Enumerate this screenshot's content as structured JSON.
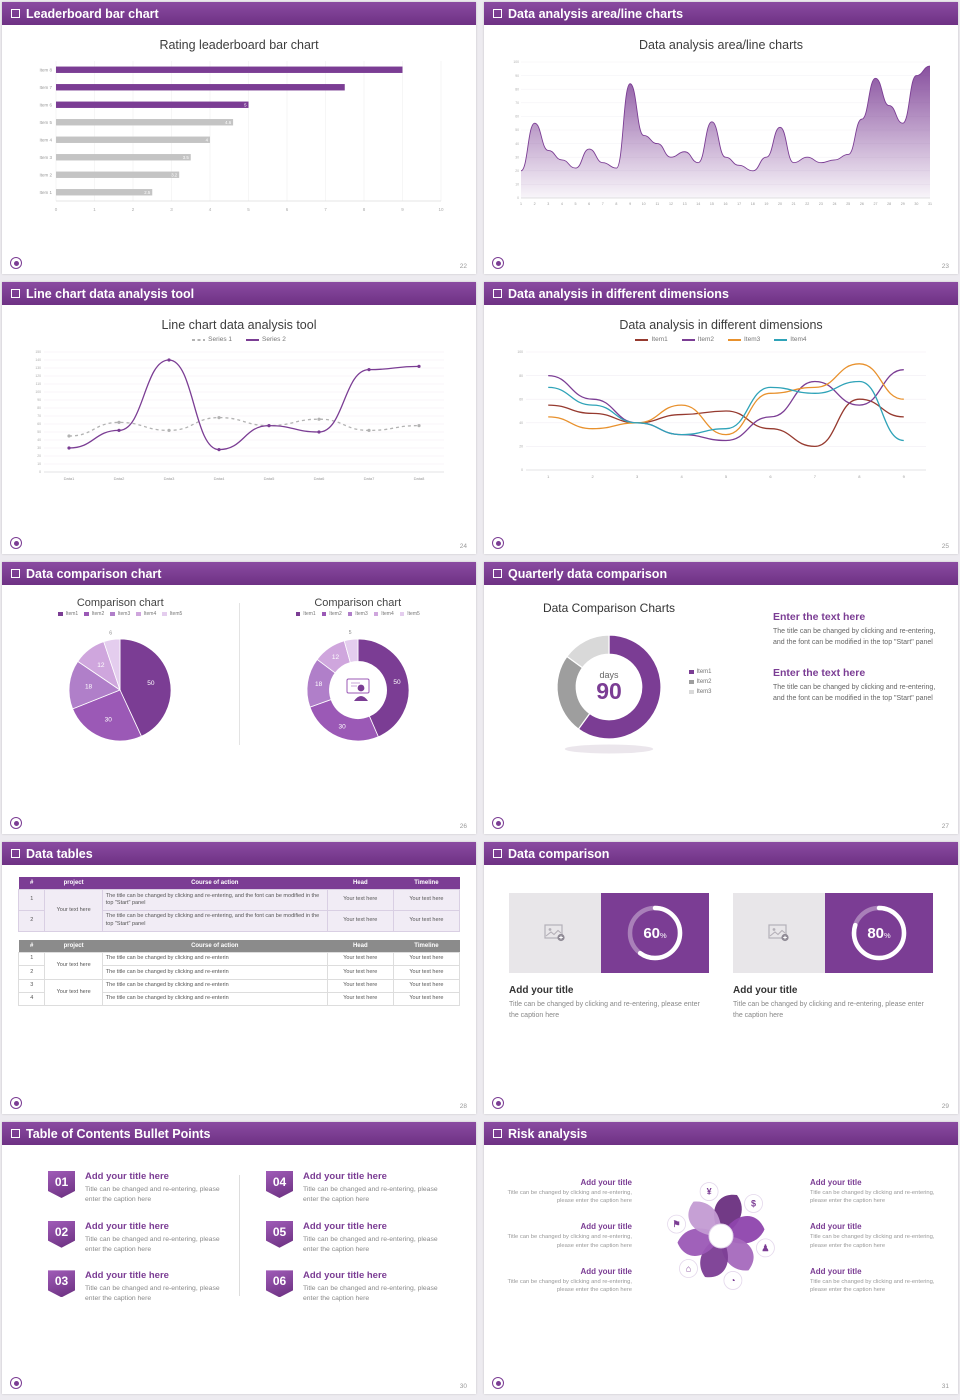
{
  "theme": {
    "purple": "#7b3d94",
    "purple_dark": "#6a2f7f",
    "purple_mid": "#9b59b6",
    "gray_bar": "#c4c4c4"
  },
  "slides": [
    {
      "header": "Leaderboard bar chart",
      "page": "22",
      "title": "Rating leaderboard bar chart",
      "chart_data": {
        "type": "hbar",
        "title": "Rating leaderboard bar chart",
        "categories": [
          "Item 1",
          "Item 2",
          "Item 3",
          "Item 4",
          "Item 5",
          "Item 6",
          "Item 7",
          "Item 8"
        ],
        "values": [
          2.5,
          3.2,
          3.5,
          4,
          4.6,
          5,
          7.5,
          9
        ],
        "value_labels": [
          "2.5",
          "3.2",
          "3.5",
          "4",
          "4.6",
          "5",
          "",
          ""
        ],
        "colors": [
          "#c4c4c4",
          "#c4c4c4",
          "#c4c4c4",
          "#c4c4c4",
          "#c4c4c4",
          "#7b3d94",
          "#7b3d94",
          "#7b3d94"
        ],
        "xlim": [
          0,
          10
        ],
        "xticks": [
          0,
          1,
          2,
          3,
          4,
          5,
          6,
          7,
          8,
          9,
          10
        ]
      }
    },
    {
      "header": "Data analysis area/line charts",
      "page": "23",
      "title": "Data analysis area/line charts",
      "chart_data": {
        "type": "area",
        "title": "Data analysis area/line charts",
        "color": "#7b3d94",
        "x": [
          1,
          2,
          3,
          4,
          5,
          6,
          7,
          8,
          9,
          10,
          11,
          12,
          13,
          14,
          15,
          16,
          17,
          18,
          19,
          20,
          21,
          22,
          23,
          24,
          25,
          26,
          27,
          28,
          29,
          30,
          31
        ],
        "values": [
          20,
          55,
          35,
          28,
          22,
          36,
          26,
          22,
          84,
          46,
          40,
          30,
          34,
          26,
          56,
          30,
          24,
          20,
          30,
          52,
          26,
          30,
          26,
          28,
          32,
          58,
          88,
          68,
          55,
          90,
          97
        ],
        "ylim": [
          0,
          100
        ],
        "ytick_step": 10
      }
    },
    {
      "header": "Line chart data analysis tool",
      "page": "24",
      "title": "Line chart data analysis tool",
      "chart_data": {
        "type": "line",
        "title": "Line chart data analysis tool",
        "markers": true,
        "categories": [
          "Data1",
          "Data2",
          "Data3",
          "Data4",
          "Data5",
          "Data6",
          "Data7",
          "Data8"
        ],
        "series": [
          {
            "name": "Series 1",
            "color": "#b3b3b3",
            "dash": "3 3",
            "values": [
              45,
              62,
              52,
              68,
              58,
              66,
              52,
              58
            ]
          },
          {
            "name": "Series 2",
            "color": "#7b3d94",
            "dash": "",
            "values": [
              30,
              52,
              140,
              28,
              58,
              50,
              128,
              132
            ]
          }
        ],
        "ylim": [
          0,
          150
        ],
        "ytick_step": 10
      }
    },
    {
      "header": "Data analysis in different dimensions",
      "page": "25",
      "title": "Data analysis in different dimensions",
      "chart_data": {
        "type": "line",
        "title": "Data analysis in different dimensions",
        "markers": false,
        "categories": [
          "1",
          "2",
          "3",
          "4",
          "5",
          "6",
          "7",
          "8",
          "9"
        ],
        "series": [
          {
            "name": "Item1",
            "color": "#963a2f",
            "dash": "",
            "values": [
              55,
              48,
              40,
              47,
              50,
              35,
              20,
              60,
              45
            ]
          },
          {
            "name": "Item2",
            "color": "#7b3d94",
            "dash": "",
            "values": [
              80,
              60,
              40,
              30,
              25,
              45,
              75,
              55,
              85
            ]
          },
          {
            "name": "Item3",
            "color": "#e8912d",
            "dash": "",
            "values": [
              45,
              35,
              40,
              55,
              30,
              65,
              70,
              90,
              60
            ]
          },
          {
            "name": "Item4",
            "color": "#2fa3b8",
            "dash": "",
            "values": [
              70,
              55,
              40,
              30,
              35,
              70,
              65,
              75,
              25
            ]
          }
        ],
        "ylim": [
          0,
          100
        ],
        "ytick_step": 20
      }
    },
    {
      "header": "Data comparison chart",
      "page": "26",
      "charts": [
        {
          "title": "Comparison chart",
          "legend": [
            "Item1",
            "Item2",
            "Item3",
            "Item4",
            "Item5"
          ],
          "chart_data": {
            "type": "pie",
            "donut": false,
            "values": [
              50,
              30,
              18,
              12,
              6
            ],
            "labels": [
              "50",
              "30",
              "18",
              "12",
              "6"
            ],
            "colors": [
              "#7b3d94",
              "#9b59b6",
              "#b07fc9",
              "#cfa6dd",
              "#e4cdee"
            ]
          }
        },
        {
          "title": "Comparison chart",
          "legend": [
            "Item1",
            "Item2",
            "Item3",
            "Item4",
            "Item5"
          ],
          "chart_data": {
            "type": "pie",
            "donut": true,
            "center_icon": "person",
            "values": [
              50,
              30,
              18,
              12,
              5
            ],
            "labels": [
              "50",
              "30",
              "18",
              "12",
              "5"
            ],
            "colors": [
              "#7b3d94",
              "#9b59b6",
              "#b07fc9",
              "#cfa6dd",
              "#e4cdee"
            ]
          }
        }
      ]
    },
    {
      "header": "Quarterly data comparison",
      "page": "27",
      "title": "Data Comparison Charts",
      "chart_data": {
        "type": "donut",
        "values": [
          60,
          25,
          15
        ],
        "colors": [
          "#7b3d94",
          "#9e9e9e",
          "#d9d9d9"
        ],
        "center_label": "days",
        "center_value": "90",
        "legend": [
          "Item1",
          "Item2",
          "Item3"
        ]
      },
      "blocks": [
        {
          "title": "Enter the text here",
          "body": "The title can be changed by clicking and re-entering, and the font can be modified in the top \"Start\" panel"
        },
        {
          "title": "Enter the text here",
          "body": "The title can be changed by clicking and re-entering, and the font can be modified in the top \"Start\" panel"
        }
      ]
    },
    {
      "header": "Data tables",
      "page": "28",
      "table1": {
        "headers": [
          "#",
          "project",
          "Course of action",
          "Head",
          "Timeline"
        ],
        "project": "Your text here",
        "rows": [
          {
            "num": "1",
            "action": "The title can be changed by clicking and re-entering, and the font can be modified in the top \"Start\" panel",
            "head": "Your text here",
            "timeline": "Your text here"
          },
          {
            "num": "2",
            "action": "The title can be changed by clicking and re-entering, and the font can be modified in the top \"Start\" panel",
            "head": "Your text here",
            "timeline": "Your text here"
          }
        ]
      },
      "table2": {
        "headers": [
          "#",
          "project",
          "Course of action",
          "Head",
          "Timeline"
        ],
        "project": "Your text here",
        "rows": [
          {
            "num": "1",
            "action": "The title can be changed by clicking and re-enterin",
            "head": "Your text here",
            "timeline": "Your text here"
          },
          {
            "num": "2",
            "action": "The title can be changed by clicking and re-enterin",
            "head": "Your text here",
            "timeline": "Your text here"
          },
          {
            "num": "3",
            "action": "The title can be changed by clicking and re-enterin",
            "head": "Your text here",
            "timeline": "Your text here"
          },
          {
            "num": "4",
            "action": "The title can be changed by clicking and re-enterin",
            "head": "Your text here",
            "timeline": "Your text here"
          }
        ]
      }
    },
    {
      "header": "Data comparison",
      "page": "29",
      "cards": [
        {
          "title": "Add your title",
          "caption": "Title can be changed by clicking and re-entering, please enter the caption here",
          "chart": {
            "type": "progress",
            "percent": 60,
            "unit": "%"
          }
        },
        {
          "title": "Add your title",
          "caption": "Title can be changed by clicking and re-entering, please enter the caption here",
          "chart": {
            "type": "progress",
            "percent": 80,
            "unit": "%"
          }
        }
      ]
    },
    {
      "header": "Table of Contents Bullet Points",
      "page": "30",
      "items": [
        {
          "num": "01",
          "title": "Add your title here",
          "caption": "Title can be changed and re-entering, please enter the caption here"
        },
        {
          "num": "02",
          "title": "Add your title here",
          "caption": "Title can be changed and re-entering, please enter the caption here"
        },
        {
          "num": "03",
          "title": "Add your title here",
          "caption": "Title can be changed and re-entering, please enter the caption here"
        },
        {
          "num": "04",
          "title": "Add your title here",
          "caption": "Title can be changed and re-entering, please enter the caption here"
        },
        {
          "num": "05",
          "title": "Add your title here",
          "caption": "Title can be changed and re-entering, please enter the caption here"
        },
        {
          "num": "06",
          "title": "Add your title here",
          "caption": "Title can be changed and re-entering, please enter the caption here"
        }
      ]
    },
    {
      "header": "Risk analysis",
      "page": "31",
      "left_blocks": [
        {
          "title": "Add your title",
          "caption": "Title can be changed by clicking and re-entering, please enter the caption here"
        },
        {
          "title": "Add your title",
          "caption": "Title can be changed by clicking and re-entering, please enter the caption here"
        },
        {
          "title": "Add your title",
          "caption": "Title can be changed by clicking and re-entering, please enter the caption here"
        }
      ],
      "right_blocks": [
        {
          "title": "Add your title",
          "caption": "Title can be changed by clicking and re-entering, please enter the caption here"
        },
        {
          "title": "Add your title",
          "caption": "Title can be changed by clicking and re-entering, please enter the caption here"
        },
        {
          "title": "Add your title",
          "caption": "Title can be changed by clicking and re-entering, please enter the caption here"
        }
      ],
      "chart": {
        "type": "pinwheel",
        "colors": [
          "#6a2f7f",
          "#8e44ad",
          "#a569bd",
          "#7b3d94",
          "#9b59b6",
          "#c39bd3"
        ],
        "icons": [
          {
            "name": "coins-icon",
            "glyph": "$"
          },
          {
            "name": "people-icon",
            "glyph": "♟"
          },
          {
            "name": "pie-chart-icon",
            "glyph": "◔"
          },
          {
            "name": "building-icon",
            "glyph": "⌂"
          },
          {
            "name": "flag-icon",
            "glyph": "⚑"
          },
          {
            "name": "money-bag-icon",
            "glyph": "¥"
          }
        ]
      }
    }
  ]
}
